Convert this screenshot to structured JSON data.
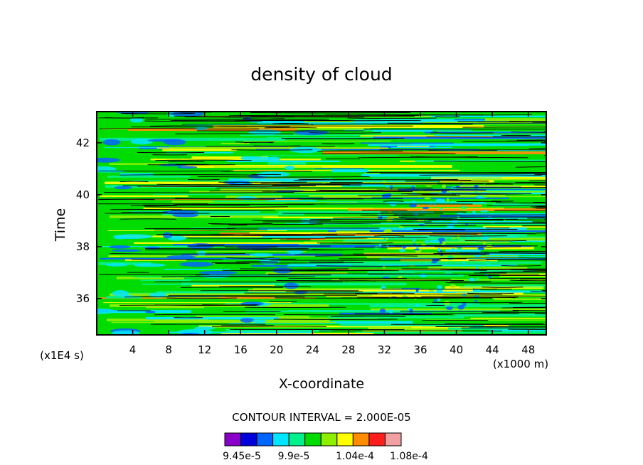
{
  "chart_data": {
    "type": "heatmap",
    "title": "density of cloud",
    "xlabel": "X-coordinate",
    "ylabel": "Time",
    "x_unit": "(x1000 m)",
    "y_unit": "(x1E4 s)",
    "xlim": [
      0,
      50
    ],
    "ylim": [
      34.6,
      43.2
    ],
    "x_ticks": [
      4,
      8,
      12,
      16,
      20,
      24,
      28,
      32,
      36,
      40,
      44,
      48
    ],
    "y_ticks": [
      36,
      38,
      40,
      42
    ],
    "contour_interval_label": "CONTOUR INTERVAL = 2.000E-05",
    "colorbar": {
      "colors": [
        "#8a00c8",
        "#0000dc",
        "#0064ff",
        "#00e6ff",
        "#00f08c",
        "#00dc00",
        "#8cf000",
        "#ffff00",
        "#ff8c00",
        "#ff1e1e",
        "#f0a0a0"
      ],
      "labels": [
        "9.45e-5",
        "9.9e-5",
        "1.04e-4",
        "1.08e-4"
      ]
    },
    "field_colors": {
      "low": "#0064ff",
      "mid_low": "#00e6ff",
      "mid": "#00f08c",
      "base": "#00dc00",
      "mid_high": "#8cf000",
      "high": "#ffff00",
      "peak": "#ff8c00"
    }
  }
}
